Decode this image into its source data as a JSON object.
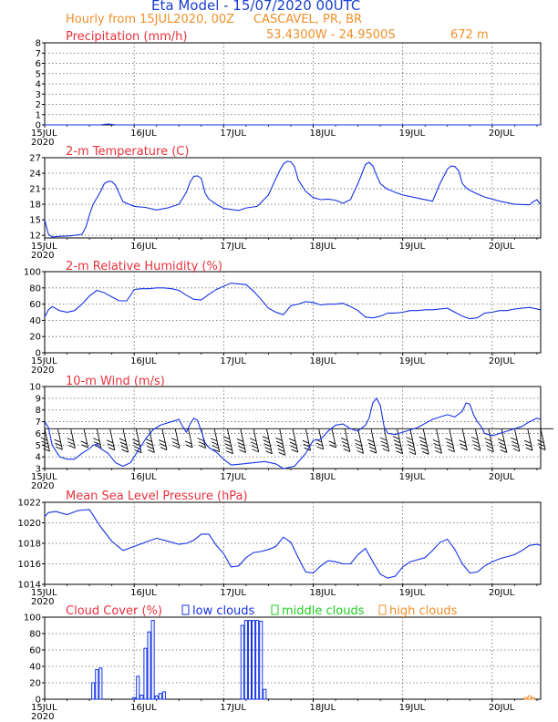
{
  "header": {
    "title": "Eta Model - 15/07/2020 00UTC",
    "subtitle": "Hourly from 15JUL2020, 00Z",
    "location": "CASCAVEL, PR, BR",
    "coordinates": "53.4300W - 24.9500S",
    "elevation": "672  m"
  },
  "colors": {
    "title": "#1a3fd0",
    "orange": "#f0902a",
    "red": "#e8323c",
    "series": "#1432e6",
    "barb": "#000000",
    "grid": "#666666",
    "low": "#1432e6",
    "mid": "#22cc22",
    "high": "#f0902a"
  },
  "time_axis": {
    "hours_range": [
      0,
      133
    ],
    "tick_labels": [
      "15JUL",
      "16JUL",
      "17JUL",
      "18JUL",
      "19JUL",
      "20JUL"
    ],
    "year_label": "2020"
  },
  "chart_data": [
    {
      "id": "precip",
      "type": "line",
      "title": "Precipitation (mm/h)",
      "ylim": [
        0,
        8
      ],
      "yticks": [
        0,
        1,
        2,
        3,
        4,
        5,
        6,
        7,
        8
      ],
      "x": [
        0,
        15,
        16,
        17,
        18,
        19,
        133
      ],
      "values": [
        0,
        0,
        0.05,
        0.08,
        0.05,
        0,
        0
      ]
    },
    {
      "id": "temp",
      "type": "line",
      "title": "2-m Temperature (C)",
      "ylim": [
        11.5,
        27
      ],
      "yticks": [
        12,
        15,
        18,
        21,
        24,
        27
      ],
      "x": [
        0,
        1,
        2,
        4,
        7,
        10,
        11,
        12,
        13,
        15,
        16,
        17,
        18,
        19,
        21,
        24,
        27,
        30,
        33,
        36,
        38,
        39,
        40,
        41,
        42,
        43,
        44,
        46,
        48,
        50,
        52,
        54,
        57,
        60,
        62,
        63,
        64,
        65,
        66,
        67,
        68,
        69,
        70,
        72,
        74,
        76,
        78,
        80,
        82,
        84,
        86,
        87,
        88,
        89,
        90,
        91,
        92,
        94,
        96,
        100,
        104,
        106,
        108,
        109,
        110,
        111,
        112,
        113,
        114,
        116,
        118,
        122,
        126,
        130,
        131,
        132,
        133
      ],
      "values": [
        15,
        12.2,
        11.7,
        11.8,
        11.9,
        12.2,
        13.5,
        16,
        18,
        20.5,
        22,
        22.4,
        22.4,
        21.7,
        18.5,
        17.6,
        17.4,
        16.9,
        17.3,
        18,
        20.3,
        22.3,
        23.4,
        23.5,
        23,
        20.2,
        19,
        18,
        17.2,
        17,
        16.8,
        17.3,
        17.6,
        19.8,
        23,
        24.5,
        25.8,
        26.3,
        26.2,
        25.3,
        22.7,
        21.6,
        20.5,
        19.3,
        18.9,
        19,
        18.8,
        18.2,
        18.9,
        22,
        25.7,
        26.1,
        25.4,
        23.6,
        22,
        21.4,
        20.9,
        20.3,
        19.8,
        19.2,
        18.6,
        22,
        24.8,
        25.4,
        25.3,
        24.5,
        22,
        21.2,
        20.7,
        20,
        19.4,
        18.6,
        18,
        17.9,
        18.5,
        18.9,
        17.9
      ]
    },
    {
      "id": "rh",
      "type": "line",
      "title": "2-m Relative Humidity (%)",
      "ylim": [
        0,
        100
      ],
      "yticks": [
        0,
        20,
        40,
        60,
        80,
        100
      ],
      "x": [
        0,
        1,
        2,
        4,
        6,
        8,
        10,
        12,
        14,
        16,
        18,
        20,
        22,
        24,
        26,
        28,
        30,
        32,
        34,
        36,
        38,
        40,
        42,
        44,
        46,
        48,
        50,
        52,
        54,
        56,
        58,
        60,
        62,
        64,
        66,
        68,
        70,
        72,
        74,
        76,
        78,
        80,
        82,
        84,
        86,
        88,
        90,
        92,
        94,
        96,
        98,
        100,
        102,
        104,
        106,
        108,
        110,
        112,
        114,
        116,
        118,
        120,
        122,
        124,
        126,
        128,
        130,
        133
      ],
      "values": [
        44,
        53,
        57,
        52,
        50,
        52,
        60,
        70,
        77,
        74,
        69,
        64,
        64,
        78,
        79,
        79,
        80,
        80,
        79,
        77,
        71,
        66,
        65,
        72,
        78,
        82,
        86,
        85,
        84,
        76,
        66,
        55,
        50,
        47,
        58,
        60,
        63,
        62,
        59,
        60,
        60,
        61,
        57,
        52,
        44,
        43,
        45,
        49,
        49,
        50,
        52,
        52,
        53,
        53,
        54,
        55,
        50,
        45,
        42,
        43,
        49,
        50,
        52,
        52,
        54,
        55,
        56,
        53
      ]
    },
    {
      "id": "wind",
      "type": "line",
      "title": "10-m Wind (m/s)",
      "ylim": [
        3,
        10
      ],
      "yticks": [
        3,
        4,
        5,
        6,
        7,
        8,
        9,
        10
      ],
      "x": [
        0,
        1,
        2,
        4,
        6,
        8,
        10,
        12,
        13,
        14,
        15,
        17,
        19,
        21,
        23,
        25,
        27,
        29,
        31,
        33,
        35,
        36,
        37,
        38,
        39,
        40,
        41,
        42,
        43,
        44,
        45,
        46,
        48,
        50,
        53,
        56,
        59,
        62,
        64,
        67,
        70,
        72,
        74,
        76,
        78,
        80,
        82,
        84,
        86,
        87,
        88,
        89,
        90,
        91,
        92,
        94,
        96,
        100,
        104,
        108,
        110,
        112,
        113,
        114,
        115,
        116,
        117,
        118,
        120,
        124,
        128,
        130,
        132,
        133
      ],
      "values": [
        7,
        6.5,
        5,
        4,
        3.8,
        3.8,
        4.3,
        4.7,
        5,
        5.1,
        4.7,
        4.3,
        3.5,
        3.2,
        3.5,
        4.5,
        5.5,
        6.3,
        6.7,
        6.9,
        7.1,
        7.2,
        6.6,
        6.1,
        6.8,
        7.3,
        7.1,
        6.2,
        5.2,
        4.8,
        4.6,
        4.4,
        3.8,
        3.3,
        3.4,
        3.5,
        3.6,
        3.4,
        3,
        3.2,
        4.3,
        5.4,
        5.5,
        6.2,
        6.7,
        6.8,
        6.4,
        6.2,
        6.7,
        7.3,
        8.6,
        9,
        8.4,
        6.6,
        6,
        5.9,
        6.1,
        6.5,
        7.2,
        7.6,
        7.4,
        7.9,
        8.6,
        8.5,
        7.6,
        7,
        6.6,
        6,
        5.8,
        6.2,
        6.6,
        7,
        7.3,
        7.2
      ],
      "barb_speed_ms": [
        3.7,
        3.1,
        2.6,
        2.4,
        2.6,
        3.3,
        4,
        4.2,
        4.1,
        3.2,
        2.6,
        2.4,
        2.6,
        3.9,
        4.5,
        4.1,
        3.9,
        4.5,
        5,
        4,
        3.4,
        3,
        2.4,
        3.8,
        4.4,
        4.3,
        3.7,
        4.5,
        4.8,
        4.7,
        4.4,
        3.9,
        3.3,
        3.5,
        3.9,
        4.1,
        3.7,
        3.4,
        3.2
      ],
      "barb_x_step_hours": 3.5
    },
    {
      "id": "mslp",
      "type": "line",
      "title": "Mean Sea Level Pressure (hPa)",
      "ylim": [
        1014,
        1022
      ],
      "yticks": [
        1014,
        1016,
        1018,
        1020,
        1022
      ],
      "x": [
        0,
        1,
        3,
        6,
        9,
        12,
        15,
        18,
        21,
        24,
        27,
        30,
        33,
        36,
        38,
        40,
        42,
        44,
        46,
        48,
        50,
        52,
        54,
        56,
        58,
        60,
        62,
        64,
        66,
        68,
        70,
        72,
        74,
        76,
        78,
        80,
        82,
        84,
        86,
        88,
        90,
        92,
        94,
        96,
        98,
        100,
        102,
        104,
        106,
        108,
        110,
        112,
        114,
        116,
        118,
        120,
        122,
        124,
        126,
        128,
        130,
        132,
        133
      ],
      "values": [
        1020.6,
        1021,
        1021.1,
        1020.8,
        1021.2,
        1021.3,
        1019.6,
        1018.2,
        1017.3,
        1017.7,
        1018.1,
        1018.5,
        1018.2,
        1017.9,
        1018,
        1018.3,
        1018.9,
        1018.9,
        1017.8,
        1017,
        1015.7,
        1015.8,
        1016.6,
        1017.1,
        1017.2,
        1017.4,
        1017.7,
        1018.6,
        1018.1,
        1016.6,
        1015.2,
        1015.1,
        1015.8,
        1016.3,
        1016.2,
        1016,
        1016,
        1016.9,
        1017.5,
        1016.2,
        1015,
        1014.6,
        1014.8,
        1015.7,
        1016.2,
        1016.4,
        1016.6,
        1017.3,
        1018.1,
        1018.4,
        1017.4,
        1016,
        1015.1,
        1015.2,
        1015.8,
        1016.2,
        1016.5,
        1016.7,
        1016.9,
        1017.3,
        1017.8,
        1017.9,
        1017.8
      ]
    },
    {
      "id": "cloud",
      "type": "bar",
      "title": "Cloud Cover (%)",
      "ylim": [
        0,
        100
      ],
      "yticks": [
        0,
        20,
        40,
        60,
        80,
        100
      ],
      "legend": [
        "low clouds",
        "middle clouds",
        "high clouds"
      ],
      "series": [
        {
          "name": "low clouds",
          "hours": [
            13,
            14,
            15,
            24,
            25,
            26,
            27,
            28,
            29,
            30,
            31,
            32,
            53,
            54,
            55,
            56,
            57,
            58,
            59
          ],
          "values": [
            20,
            36,
            38,
            2,
            28,
            5,
            62,
            82,
            96,
            4,
            7,
            9,
            90,
            96,
            96,
            96,
            96,
            95,
            12
          ]
        },
        {
          "name": "high clouds",
          "hours": [
            129,
            130,
            131
          ],
          "values": [
            2,
            4,
            2
          ]
        }
      ]
    }
  ]
}
